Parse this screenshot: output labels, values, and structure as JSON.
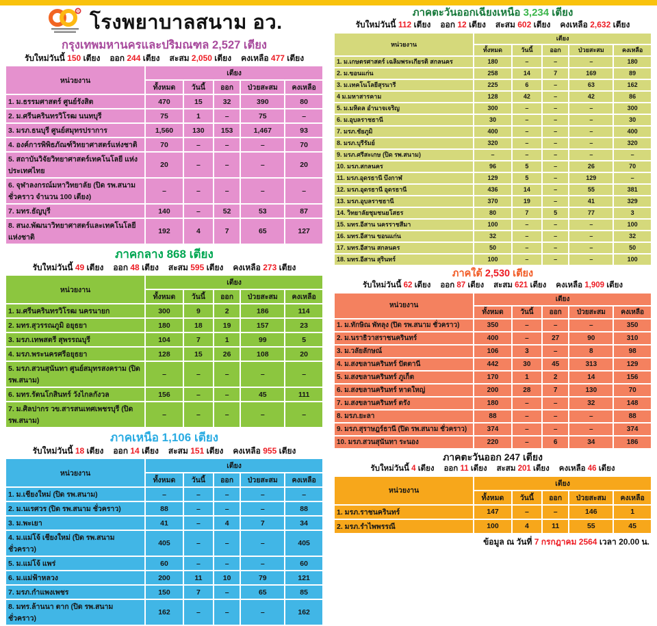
{
  "title": "โรงพยาบาลสนาม อว.",
  "stats_labels": {
    "new": "รับใหม่วันนี้",
    "out": "ออก",
    "cum": "สะสม",
    "remain": "คงเหลือ",
    "unit": "เตียง"
  },
  "table_headers": {
    "unit": "หน่วยงาน",
    "beds": "เตียง",
    "cols": [
      "ทั้งหมด",
      "วันนี้",
      "ออก",
      "ป่วยสะสม",
      "คงเหลือ"
    ]
  },
  "footer": {
    "prefix": "ข้อมูล ณ วันที่",
    "date": "7 กรกฎาคม 2564",
    "suffix": "เวลา 20.00 น."
  },
  "regions": [
    {
      "heading": "กรุงเทพมหานครและปริมณฑล",
      "total": "2,527",
      "stats": {
        "new": "150",
        "out": "244",
        "cum": "2,050",
        "remain": "477"
      },
      "rows": [
        {
          "name": "1. ม.ธรรมศาสตร์ ศูนย์รังสิต",
          "values": [
            "470",
            "15",
            "32",
            "390",
            "80"
          ]
        },
        {
          "name": "2. ม.ศรีนครินทรวิโรฒ นนทบุรี",
          "values": [
            "75",
            "1",
            "–",
            "75",
            "–"
          ]
        },
        {
          "name": "3. มรภ.ธนบุรี ศูนย์สมุทรปราการ",
          "values": [
            "1,560",
            "130",
            "153",
            "1,467",
            "93"
          ]
        },
        {
          "name": "4. องค์การพิพิธภัณฑ์วิทยาศาสตร์แห่งชาติ",
          "values": [
            "70",
            "–",
            "–",
            "–",
            "70"
          ]
        },
        {
          "name": "5. สถาบันวิจัยวิทยาศาสตร์เทคโนโลยี แห่งประเทศไทย",
          "values": [
            "20",
            "–",
            "–",
            "–",
            "20"
          ]
        },
        {
          "name": "6. จุฬาลงกรณ์มหาวิทยาลัย (ปิด รพ.สนาม ชั่วคราว จำนวน 100 เตียง)",
          "values": [
            "–",
            "–",
            "–",
            "–",
            "–"
          ]
        },
        {
          "name": "7. มทร.ธัญบุรี",
          "values": [
            "140",
            "–",
            "52",
            "53",
            "87"
          ]
        },
        {
          "name": "8. สนง.พัฒนาวิทยาศาสตร์และเทคโนโลยีแห่งชาติ",
          "values": [
            "192",
            "4",
            "7",
            "65",
            "127"
          ]
        }
      ]
    },
    {
      "heading": "ภาคกลาง",
      "total": "868",
      "stats": {
        "new": "49",
        "out": "48",
        "cum": "595",
        "remain": "273"
      },
      "rows": [
        {
          "name": "1. ม.ศรีนครินทรวิโรฒ นครนายก",
          "values": [
            "300",
            "9",
            "2",
            "186",
            "114"
          ]
        },
        {
          "name": "2. มทร.สุวรรณภูมิ อยุธยา",
          "values": [
            "180",
            "18",
            "19",
            "157",
            "23"
          ]
        },
        {
          "name": "3. มรภ.เทพสตรี สุพรรณบุรี",
          "values": [
            "104",
            "7",
            "1",
            "99",
            "5"
          ]
        },
        {
          "name": "4. มรภ.พระนครศรีอยุธยา",
          "values": [
            "128",
            "15",
            "26",
            "108",
            "20"
          ]
        },
        {
          "name": "5. มรภ.สวนสุนันทา ศูนย์สมุทรสงคราม (ปิด รพ.สนาม)",
          "values": [
            "–",
            "–",
            "–",
            "–",
            "–"
          ]
        },
        {
          "name": "6. มทร.รัตนโกสินทร์ วังไกลกังวล",
          "values": [
            "156",
            "–",
            "–",
            "45",
            "111"
          ]
        },
        {
          "name": "7. ม.ศิลปากร วข.สารสนเทศเพชรบุรี (ปิด รพ.สนาม)",
          "values": [
            "–",
            "–",
            "–",
            "–",
            "–"
          ]
        }
      ]
    },
    {
      "heading": "ภาคเหนือ",
      "total": "1,106",
      "stats": {
        "new": "18",
        "out": "14",
        "cum": "151",
        "remain": "955"
      },
      "rows": [
        {
          "name": "1. ม.เชียงใหม่ (ปิด รพ.สนาม)",
          "values": [
            "–",
            "–",
            "–",
            "–",
            "–"
          ]
        },
        {
          "name": "2. ม.นเรศวร (ปิด รพ.สนาม ชั่วคราว)",
          "values": [
            "88",
            "–",
            "–",
            "–",
            "88"
          ]
        },
        {
          "name": "3. ม.พะเยา",
          "values": [
            "41",
            "–",
            "4",
            "7",
            "34"
          ]
        },
        {
          "name": "4. ม.แม่โจ้ เชียงใหม่ (ปิด รพ.สนาม ชั่วคราว)",
          "values": [
            "405",
            "–",
            "–",
            "–",
            "405"
          ]
        },
        {
          "name": "5. ม.แม่โจ้ แพร่",
          "values": [
            "60",
            "–",
            "–",
            "–",
            "60"
          ]
        },
        {
          "name": "6. ม.แม่ฟ้าหลวง",
          "values": [
            "200",
            "11",
            "10",
            "79",
            "121"
          ]
        },
        {
          "name": "7. มรภ.กำแพงเพชร",
          "values": [
            "150",
            "7",
            "–",
            "65",
            "85"
          ]
        },
        {
          "name": "8. มทร.ล้านนา ตาก (ปิด รพ.สนาม ชั่วคราว)",
          "values": [
            "162",
            "–",
            "–",
            "–",
            "162"
          ]
        }
      ]
    },
    {
      "heading": "ภาคตะวันออกเฉียงเหนือ",
      "total": "3,234",
      "stats": {
        "new": "112",
        "out": "12",
        "cum": "602",
        "remain": "2,632"
      },
      "rows": [
        {
          "name": "1. ม.เกษตรศาสตร์ เฉลิมพระเกียรติ สกลนคร",
          "values": [
            "180",
            "–",
            "–",
            "–",
            "180"
          ]
        },
        {
          "name": "2. ม.ขอนแก่น",
          "values": [
            "258",
            "14",
            "7",
            "169",
            "89"
          ]
        },
        {
          "name": "3. ม.เทคโนโลยีสุรนารี",
          "values": [
            "225",
            "6",
            "–",
            "63",
            "162"
          ]
        },
        {
          "name": "4 ม.มหาสารคาม",
          "values": [
            "128",
            "42",
            "–",
            "42",
            "86"
          ]
        },
        {
          "name": "5. ม.มหิดล อำนาจเจริญ",
          "values": [
            "300",
            "–",
            "–",
            "–",
            "300"
          ]
        },
        {
          "name": "6. ม.อุบลราชธานี",
          "values": [
            "30",
            "–",
            "–",
            "–",
            "30"
          ]
        },
        {
          "name": "7. มรภ.ชัยภูมิ",
          "values": [
            "400",
            "–",
            "–",
            "–",
            "400"
          ]
        },
        {
          "name": "8. มรภ.บุรีรัมย์",
          "values": [
            "320",
            "–",
            "–",
            "–",
            "320"
          ]
        },
        {
          "name": "9. มรภ.ศรีสะเกษ (ปิด รพ.สนาม)",
          "values": [
            "–",
            "–",
            "–",
            "–",
            "–"
          ]
        },
        {
          "name": "10. มรภ.สกลนคร",
          "values": [
            "96",
            "5",
            "–",
            "26",
            "70"
          ]
        },
        {
          "name": "11. มรภ.อุดรธานี บึงกาฬ",
          "values": [
            "129",
            "5",
            "–",
            "129",
            "–"
          ]
        },
        {
          "name": "12. มรภ.อุดรธานี อุดรธานี",
          "values": [
            "436",
            "14",
            "–",
            "55",
            "381"
          ]
        },
        {
          "name": "13. มรภ.อุบลราชธานี",
          "values": [
            "370",
            "19",
            "–",
            "41",
            "329"
          ]
        },
        {
          "name": "14. วิทยาลัยชุมชนยโสธร",
          "values": [
            "80",
            "7",
            "5",
            "77",
            "3"
          ]
        },
        {
          "name": "15. มทร.อีสาน นครราชสีมา",
          "values": [
            "100",
            "–",
            "–",
            "–",
            "100"
          ]
        },
        {
          "name": "16. มทร.อีสาน ขอนแก่น",
          "values": [
            "32",
            "–",
            "–",
            "–",
            "32"
          ]
        },
        {
          "name": "17. มทร.อีสาน สกลนคร",
          "values": [
            "50",
            "–",
            "–",
            "–",
            "50"
          ]
        },
        {
          "name": "18. มทร.อีสาน สุรินทร์",
          "values": [
            "100",
            "–",
            "–",
            "–",
            "100"
          ]
        }
      ]
    },
    {
      "heading": "ภาคใต้",
      "total": "2,530",
      "stats": {
        "new": "62",
        "out": "87",
        "cum": "621",
        "remain": "1,909"
      },
      "rows": [
        {
          "name": "1. ม.ทักษิณ พัทลุง (ปิด รพ.สนาม ชั่วคราว)",
          "values": [
            "350",
            "–",
            "–",
            "–",
            "350"
          ]
        },
        {
          "name": "2. ม.นราธิวาสราชนครินทร์",
          "values": [
            "400",
            "–",
            "27",
            "90",
            "310"
          ]
        },
        {
          "name": "3. ม.วลัยลักษณ์",
          "values": [
            "106",
            "3",
            "–",
            "8",
            "98"
          ]
        },
        {
          "name": "4. ม.สงขลานครินทร์ ปัตตานี",
          "values": [
            "442",
            "30",
            "45",
            "313",
            "129"
          ]
        },
        {
          "name": "5. ม.สงขลานครินทร์ ภูเก็ต",
          "values": [
            "170",
            "1",
            "2",
            "14",
            "156"
          ]
        },
        {
          "name": "6. ม.สงขลานครินทร์ หาดใหญ่",
          "values": [
            "200",
            "28",
            "7",
            "130",
            "70"
          ]
        },
        {
          "name": "7. ม.สงขลานครินทร์ ตรัง",
          "values": [
            "180",
            "–",
            "–",
            "32",
            "148"
          ]
        },
        {
          "name": "8. มรภ.ยะลา",
          "values": [
            "88",
            "–",
            "–",
            "–",
            "88"
          ]
        },
        {
          "name": "9. มรภ.สุราษฎร์ธานี (ปิด รพ.สนาม ชั่วคราว)",
          "values": [
            "374",
            "–",
            "–",
            "–",
            "374"
          ]
        },
        {
          "name": "10. มรภ.สวนสุนันทา ระนอง",
          "values": [
            "220",
            "–",
            "6",
            "34",
            "186"
          ]
        }
      ]
    },
    {
      "heading": "ภาคตะวันออก",
      "total": "247",
      "stats": {
        "new": "4",
        "out": "11",
        "cum": "201",
        "remain": "46"
      },
      "rows": [
        {
          "name": "1. มรภ.ราชนครินทร์",
          "values": [
            "147",
            "–",
            "–",
            "146",
            "1"
          ]
        },
        {
          "name": "2. มรภ.รำไพพรรณี",
          "values": [
            "100",
            "4",
            "11",
            "55",
            "45"
          ]
        }
      ]
    }
  ]
}
